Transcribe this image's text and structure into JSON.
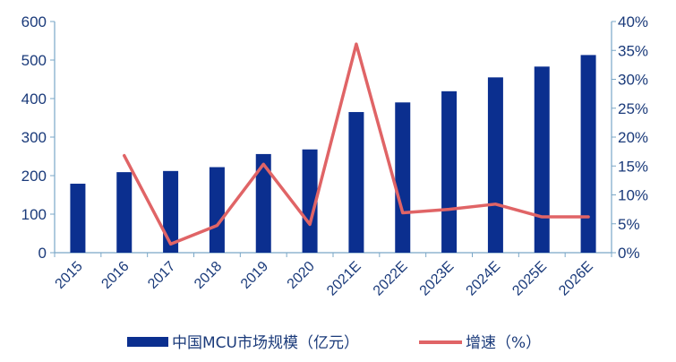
{
  "chart_data": {
    "type": "bar+line",
    "categories": [
      "2015",
      "2016",
      "2017",
      "2018",
      "2019",
      "2020",
      "2021E",
      "2022E",
      "2023E",
      "2024E",
      "2025E",
      "2026E"
    ],
    "series": [
      {
        "name": "中国MCU市场规模（亿元）",
        "type": "bar",
        "axis": "left",
        "color": "#0b2f8f",
        "values": [
          179,
          209,
          212,
          222,
          256,
          268,
          365,
          390,
          419,
          455,
          483,
          513
        ]
      },
      {
        "name": "增速（%）",
        "type": "line",
        "axis": "right",
        "color": "#e06466",
        "values": [
          null,
          16.8,
          1.5,
          4.7,
          15.3,
          4.9,
          36.1,
          6.9,
          7.5,
          8.4,
          6.2,
          6.2
        ]
      }
    ],
    "y_left": {
      "min": 0,
      "max": 600,
      "step": 100,
      "ticks": [
        "0",
        "100",
        "200",
        "300",
        "400",
        "500",
        "600"
      ]
    },
    "y_right": {
      "min": 0,
      "max": 40,
      "step": 5,
      "ticks": [
        "0%",
        "5%",
        "10%",
        "15%",
        "20%",
        "25%",
        "30%",
        "35%",
        "40%"
      ]
    },
    "grid": false,
    "legend_position": "bottom"
  }
}
